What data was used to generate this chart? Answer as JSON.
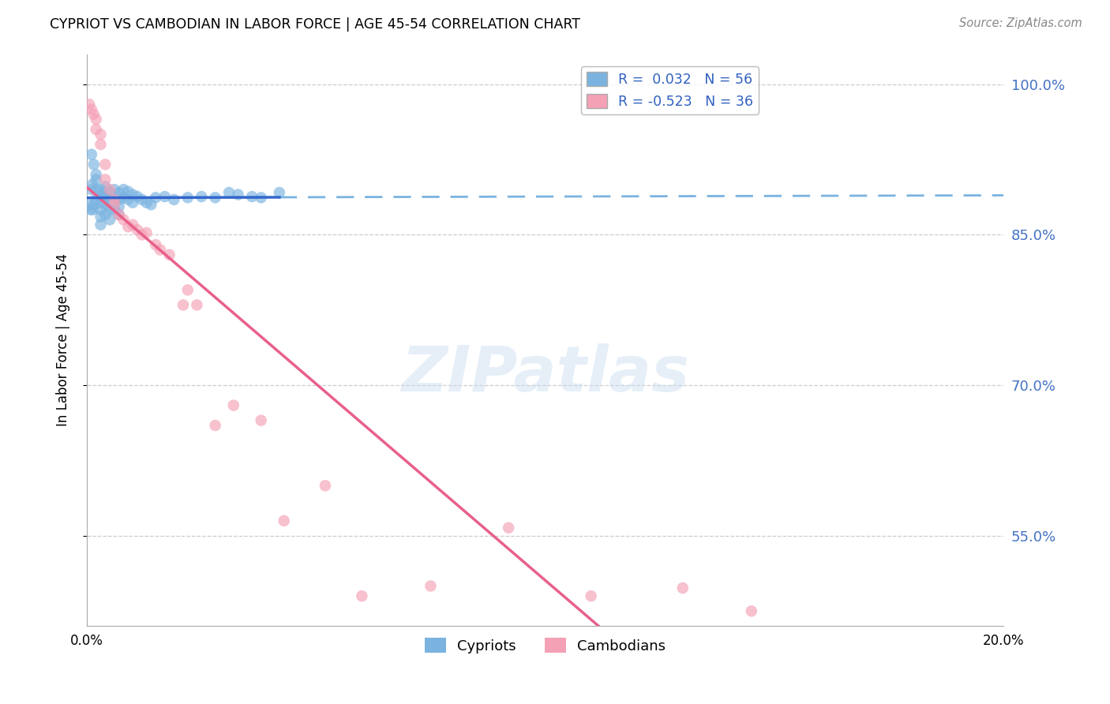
{
  "title": "CYPRIOT VS CAMBODIAN IN LABOR FORCE | AGE 45-54 CORRELATION CHART",
  "source": "Source: ZipAtlas.com",
  "ylabel": "In Labor Force | Age 45-54",
  "xlim": [
    0.0,
    0.2
  ],
  "ylim": [
    0.46,
    1.03
  ],
  "yticks": [
    0.55,
    0.7,
    0.85,
    1.0
  ],
  "ytick_labels": [
    "55.0%",
    "70.0%",
    "85.0%",
    "100.0%"
  ],
  "xticks": [
    0.0,
    0.05,
    0.1,
    0.15,
    0.2
  ],
  "xtick_labels": [
    "0.0%",
    "",
    "",
    "",
    "20.0%"
  ],
  "cypriot_color": "#7ab3e0",
  "cambodian_color": "#f4a0b5",
  "trend_cypriot_solid_color": "#3366cc",
  "trend_cypriot_dash_color": "#7ab3e0",
  "trend_cambodian_color": "#e8608a",
  "legend_line1": "R =  0.032   N = 56",
  "legend_line2": "R = -0.523   N = 36",
  "watermark": "ZIPatlas",
  "cypriot_x": [
    0.0005,
    0.0008,
    0.001,
    0.001,
    0.0012,
    0.0013,
    0.0015,
    0.0015,
    0.002,
    0.002,
    0.002,
    0.002,
    0.003,
    0.003,
    0.003,
    0.003,
    0.003,
    0.003,
    0.0035,
    0.004,
    0.004,
    0.004,
    0.004,
    0.0045,
    0.005,
    0.005,
    0.005,
    0.005,
    0.006,
    0.006,
    0.006,
    0.007,
    0.007,
    0.007,
    0.007,
    0.008,
    0.008,
    0.009,
    0.009,
    0.01,
    0.01,
    0.011,
    0.012,
    0.013,
    0.014,
    0.015,
    0.017,
    0.019,
    0.022,
    0.025,
    0.028,
    0.031,
    0.033,
    0.036,
    0.038,
    0.042
  ],
  "cypriot_y": [
    0.88,
    0.875,
    0.93,
    0.895,
    0.9,
    0.875,
    0.92,
    0.88,
    0.91,
    0.905,
    0.895,
    0.885,
    0.895,
    0.888,
    0.882,
    0.875,
    0.868,
    0.86,
    0.892,
    0.898,
    0.888,
    0.88,
    0.87,
    0.887,
    0.892,
    0.885,
    0.875,
    0.865,
    0.895,
    0.885,
    0.875,
    0.892,
    0.885,
    0.878,
    0.87,
    0.895,
    0.887,
    0.893,
    0.885,
    0.89,
    0.882,
    0.888,
    0.885,
    0.882,
    0.88,
    0.887,
    0.888,
    0.885,
    0.887,
    0.888,
    0.887,
    0.892,
    0.89,
    0.888,
    0.887,
    0.892
  ],
  "cambodian_x": [
    0.0005,
    0.001,
    0.0015,
    0.002,
    0.002,
    0.003,
    0.003,
    0.004,
    0.004,
    0.005,
    0.006,
    0.006,
    0.007,
    0.008,
    0.009,
    0.01,
    0.011,
    0.012,
    0.013,
    0.015,
    0.016,
    0.018,
    0.021,
    0.022,
    0.024,
    0.028,
    0.032,
    0.038,
    0.043,
    0.052,
    0.06,
    0.075,
    0.092,
    0.11,
    0.13,
    0.145
  ],
  "cambodian_y": [
    0.98,
    0.975,
    0.97,
    0.965,
    0.955,
    0.95,
    0.94,
    0.92,
    0.905,
    0.895,
    0.885,
    0.88,
    0.87,
    0.865,
    0.858,
    0.86,
    0.855,
    0.85,
    0.852,
    0.84,
    0.835,
    0.83,
    0.78,
    0.795,
    0.78,
    0.66,
    0.68,
    0.665,
    0.565,
    0.6,
    0.49,
    0.5,
    0.558,
    0.49,
    0.498,
    0.475
  ]
}
